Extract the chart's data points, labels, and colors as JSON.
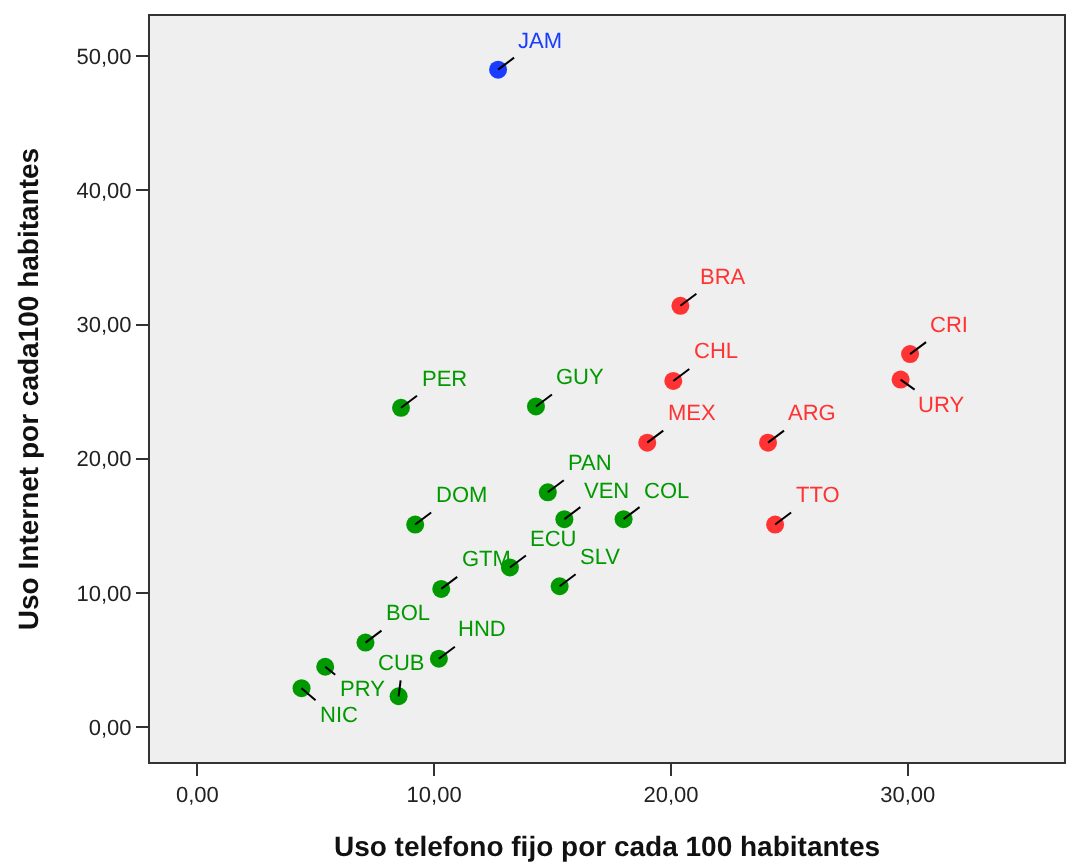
{
  "chart_data": {
    "type": "scatter",
    "xlabel": "Uso telefono fijo por cada 100 habitantes",
    "ylabel": "Uso Internet por cada100 habitantes",
    "xlim": [
      -2,
      36.6
    ],
    "ylim": [
      -2.6,
      53
    ],
    "xticks": [
      {
        "value": 0,
        "label": "0,00"
      },
      {
        "value": 10,
        "label": "10,00"
      },
      {
        "value": 20,
        "label": "20,00"
      },
      {
        "value": 30,
        "label": "30,00"
      }
    ],
    "yticks": [
      {
        "value": 0,
        "label": "0,00"
      },
      {
        "value": 10,
        "label": "10,00"
      },
      {
        "value": 20,
        "label": "20,00"
      },
      {
        "value": 30,
        "label": "30,00"
      },
      {
        "value": 40,
        "label": "40,00"
      },
      {
        "value": 50,
        "label": "50,00"
      }
    ],
    "marker": "circle",
    "series": [
      {
        "color": "#1a3cff",
        "x": [
          12.7
        ],
        "values": [
          49.0
        ]
      },
      {
        "color": "#ff3333",
        "x": [
          20.4,
          30.1,
          20.1,
          29.7,
          19.0,
          24.1,
          24.4
        ],
        "values": [
          31.4,
          27.8,
          25.8,
          25.9,
          21.2,
          21.2,
          15.1
        ]
      },
      {
        "color": "#009900",
        "x": [
          8.6,
          14.3,
          14.8,
          15.5,
          18.0,
          9.2,
          13.2,
          10.3,
          15.3,
          7.1,
          10.2,
          5.4,
          4.4,
          8.5
        ],
        "values": [
          23.8,
          23.9,
          17.5,
          15.5,
          15.5,
          15.1,
          11.9,
          10.3,
          10.5,
          6.3,
          5.1,
          4.5,
          2.9,
          2.3
        ]
      }
    ],
    "annotations": [
      {
        "text": "JAM",
        "x": 12.7,
        "y": 49.0
      },
      {
        "text": "BRA",
        "x": 20.4,
        "y": 31.4
      },
      {
        "text": "CRI",
        "x": 30.1,
        "y": 27.8
      },
      {
        "text": "CHL",
        "x": 20.1,
        "y": 25.8
      },
      {
        "text": "URY",
        "x": 29.7,
        "y": 25.9
      },
      {
        "text": "MEX",
        "x": 19.0,
        "y": 21.2
      },
      {
        "text": "ARG",
        "x": 24.1,
        "y": 21.2
      },
      {
        "text": "TTO",
        "x": 24.4,
        "y": 15.1
      },
      {
        "text": "PER",
        "x": 8.6,
        "y": 23.8
      },
      {
        "text": "GUY",
        "x": 14.3,
        "y": 23.9
      },
      {
        "text": "PAN",
        "x": 14.8,
        "y": 17.5
      },
      {
        "text": "VEN",
        "x": 15.5,
        "y": 15.5
      },
      {
        "text": "COL",
        "x": 18.0,
        "y": 15.5
      },
      {
        "text": "DOM",
        "x": 9.2,
        "y": 15.1
      },
      {
        "text": "ECU",
        "x": 13.2,
        "y": 11.9
      },
      {
        "text": "GTM",
        "x": 10.3,
        "y": 10.3
      },
      {
        "text": "SLV",
        "x": 15.3,
        "y": 10.5
      },
      {
        "text": "BOL",
        "x": 7.1,
        "y": 6.3
      },
      {
        "text": "HND",
        "x": 10.2,
        "y": 5.1
      },
      {
        "text": "PRY",
        "x": 5.4,
        "y": 4.5
      },
      {
        "text": "NIC",
        "x": 4.4,
        "y": 2.9
      },
      {
        "text": "CUB",
        "x": 8.5,
        "y": 2.3
      }
    ]
  }
}
